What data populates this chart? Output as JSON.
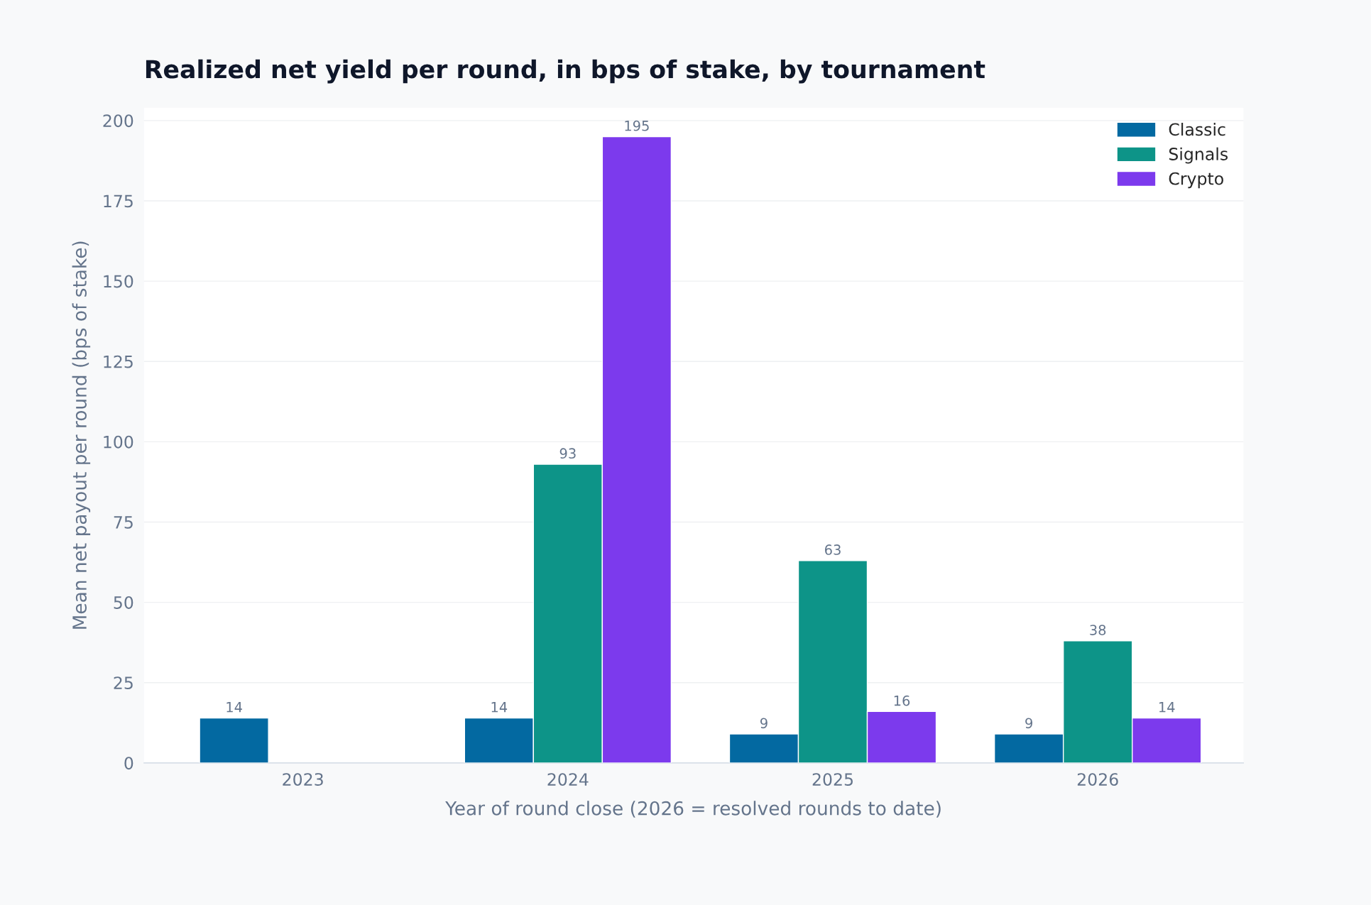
{
  "chart_data": {
    "type": "bar",
    "title": "Realized net yield per round, in bps of stake, by tournament",
    "xlabel": "Year of round close (2026 = resolved rounds to date)",
    "ylabel": "Mean net payout per round (bps of stake)",
    "categories": [
      "2023",
      "2024",
      "2025",
      "2026"
    ],
    "series": [
      {
        "name": "Classic",
        "color": "#0369a1",
        "values": [
          14,
          14,
          9,
          9
        ]
      },
      {
        "name": "Signals",
        "color": "#0d9488",
        "values": [
          null,
          93,
          63,
          38
        ]
      },
      {
        "name": "Crypto",
        "color": "#7c3aed",
        "values": [
          null,
          195,
          16,
          14
        ]
      }
    ],
    "ylim": [
      0,
      204
    ],
    "yticks": [
      0,
      25,
      50,
      75,
      100,
      125,
      150,
      175,
      200
    ],
    "grid": "y",
    "legend": "top right",
    "data_labels": true
  }
}
